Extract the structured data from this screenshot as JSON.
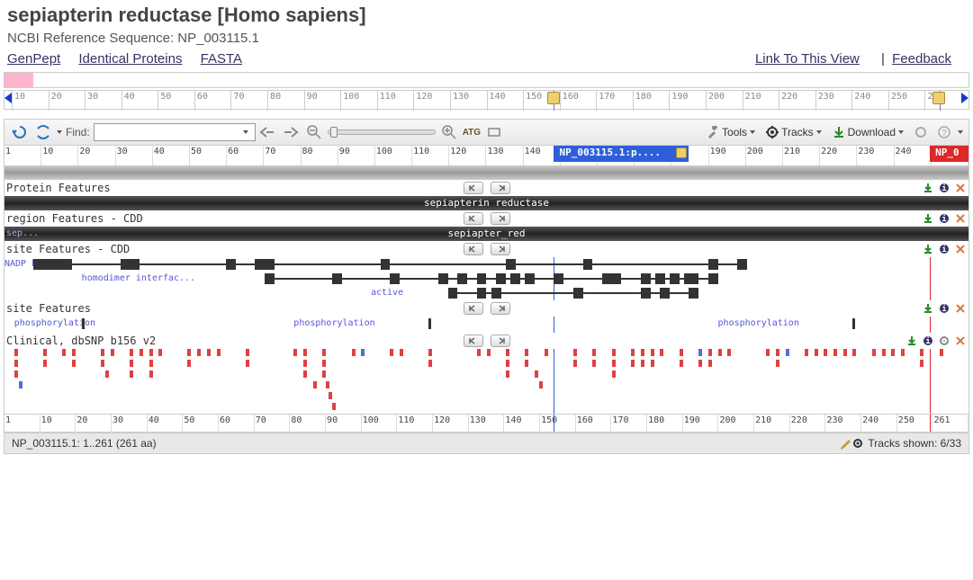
{
  "header": {
    "title": "sepiapterin reductase [Homo sapiens]",
    "subtitle_prefix": "NCBI Reference Sequence:",
    "accession": "NP_003115.1",
    "links": [
      "GenPept",
      "Identical Proteins",
      "FASTA"
    ],
    "right_links": [
      "Link To This View",
      "Feedback"
    ]
  },
  "overview_ruler": {
    "start": 10,
    "end": 260,
    "step": 10,
    "marker_positions_pct": [
      57,
      97
    ],
    "lock_positions_pct": [
      56.3,
      96.3
    ]
  },
  "toolbar": {
    "find_label": "Find:",
    "buttons_right": [
      "Tools",
      "Tracks",
      "Download"
    ]
  },
  "main_ruler": {
    "ticks": [
      1,
      10,
      20,
      30,
      40,
      50,
      60,
      70,
      80,
      90,
      100,
      110,
      120,
      130,
      140,
      150,
      160,
      170,
      180,
      190,
      200,
      210,
      220,
      230,
      240,
      250
    ],
    "blue_label": "NP_003115.1:p....",
    "blue_pos_pct": 57,
    "blue_width_pct": 14,
    "red_label": "NP_0",
    "red_pos_pct": 96,
    "red_width_pct": 4
  },
  "tracks": [
    {
      "name": "Protein Features",
      "type": "header_bar",
      "bar_label": "sepiapterin reductase",
      "icons": [
        "download",
        "info",
        "close"
      ],
      "small_label": null
    },
    {
      "name": "region Features - CDD",
      "type": "header_bar",
      "bar_label": "sepiapter_red",
      "icons": [
        "download",
        "info",
        "close"
      ],
      "small_label": "sep..."
    },
    {
      "name": "site Features - CDD",
      "type": "features",
      "icons": [
        "download",
        "info",
        "close"
      ],
      "rows": [
        {
          "label": "NADP b...",
          "label_pos_pct": 0,
          "line": [
            3,
            77
          ],
          "blocks": [
            [
              3,
              7
            ],
            [
              12,
              14
            ],
            [
              23,
              24
            ],
            [
              26,
              28
            ],
            [
              39,
              40
            ],
            [
              52,
              53
            ],
            [
              60,
              61
            ],
            [
              73,
              74
            ],
            [
              76,
              77
            ]
          ]
        },
        {
          "label": "homodimer interfac...",
          "label_pos_pct": 8,
          "line": [
            27,
            74
          ],
          "blocks": [
            [
              27,
              28
            ],
            [
              34,
              35
            ],
            [
              40,
              41
            ],
            [
              45,
              46
            ],
            [
              47,
              48
            ],
            [
              49,
              50
            ],
            [
              51,
              52
            ],
            [
              52.5,
              53.5
            ],
            [
              54,
              55
            ],
            [
              57,
              58
            ],
            [
              62,
              64
            ],
            [
              66,
              67
            ],
            [
              67.5,
              68.5
            ],
            [
              69,
              70
            ],
            [
              70.5,
              72
            ],
            [
              73,
              74
            ]
          ]
        },
        {
          "label": "active",
          "label_pos_pct": 38,
          "line": [
            46,
            72
          ],
          "blocks": [
            [
              46,
              47
            ],
            [
              49,
              50
            ],
            [
              50.5,
              51.5
            ],
            [
              59,
              60
            ],
            [
              66,
              67
            ],
            [
              68,
              69
            ],
            [
              71,
              72
            ]
          ]
        }
      ]
    },
    {
      "name": "site Features",
      "type": "sites",
      "icons": [
        "download",
        "info",
        "close"
      ],
      "sites": [
        {
          "label": "phosphorylation",
          "pos_pct": 1,
          "tick_pct": 8
        },
        {
          "label": "phosphorylation",
          "pos_pct": 30,
          "tick_pct": 44
        },
        {
          "label": "phosphorylation",
          "pos_pct": 74,
          "tick_pct": 88
        }
      ]
    },
    {
      "name": "Clinical, dbSNP b156 v2",
      "type": "snp",
      "icons": [
        "download",
        "info",
        "gear",
        "close"
      ],
      "snps": {
        "red": [
          [
            1,
            0
          ],
          [
            1,
            1
          ],
          [
            1,
            2
          ],
          [
            4,
            0
          ],
          [
            4,
            1
          ],
          [
            6,
            0
          ],
          [
            7,
            0
          ],
          [
            7,
            1
          ],
          [
            10,
            0
          ],
          [
            10,
            1
          ],
          [
            10.5,
            2
          ],
          [
            11,
            0
          ],
          [
            13,
            0
          ],
          [
            13,
            1
          ],
          [
            13,
            2
          ],
          [
            14,
            0
          ],
          [
            15,
            0
          ],
          [
            15,
            1
          ],
          [
            15,
            2
          ],
          [
            16,
            0
          ],
          [
            19,
            0
          ],
          [
            19,
            1
          ],
          [
            20,
            0
          ],
          [
            21,
            0
          ],
          [
            22,
            0
          ],
          [
            25,
            0
          ],
          [
            25,
            1
          ],
          [
            30,
            0
          ],
          [
            31,
            0
          ],
          [
            31,
            1
          ],
          [
            31,
            2
          ],
          [
            32,
            3
          ],
          [
            33,
            0
          ],
          [
            33,
            1
          ],
          [
            33,
            2
          ],
          [
            33.3,
            3
          ],
          [
            33.6,
            4
          ],
          [
            34,
            5
          ],
          [
            36,
            0
          ],
          [
            40,
            0
          ],
          [
            41,
            0
          ],
          [
            44,
            0
          ],
          [
            44,
            1
          ],
          [
            49,
            0
          ],
          [
            50,
            0
          ],
          [
            52,
            0
          ],
          [
            52,
            1
          ],
          [
            52,
            2
          ],
          [
            54,
            0
          ],
          [
            54,
            1
          ],
          [
            55,
            2
          ],
          [
            55.5,
            3
          ],
          [
            56,
            0
          ],
          [
            59,
            0
          ],
          [
            59,
            1
          ],
          [
            61,
            0
          ],
          [
            61,
            1
          ],
          [
            63,
            0
          ],
          [
            63,
            1
          ],
          [
            63,
            2
          ],
          [
            65,
            0
          ],
          [
            65,
            1
          ],
          [
            66,
            0
          ],
          [
            66,
            1
          ],
          [
            67,
            0
          ],
          [
            67,
            1
          ],
          [
            68,
            0
          ],
          [
            70,
            0
          ],
          [
            70,
            1
          ],
          [
            72,
            1
          ],
          [
            73,
            0
          ],
          [
            73,
            1
          ],
          [
            74,
            0
          ],
          [
            75,
            0
          ],
          [
            79,
            0
          ],
          [
            80,
            0
          ],
          [
            80,
            1
          ],
          [
            83,
            0
          ],
          [
            84,
            0
          ],
          [
            85,
            0
          ],
          [
            86,
            0
          ],
          [
            87,
            0
          ],
          [
            88,
            0
          ],
          [
            90,
            0
          ],
          [
            91,
            0
          ],
          [
            92,
            0
          ],
          [
            93,
            0
          ],
          [
            95,
            0
          ],
          [
            95,
            1
          ],
          [
            97,
            0
          ]
        ],
        "blue": [
          [
            1.5,
            3
          ],
          [
            37,
            0
          ],
          [
            72,
            0
          ],
          [
            81,
            0
          ]
        ]
      }
    }
  ],
  "status": {
    "left": "NP_003115.1: 1..261 (261 aa)",
    "right": "Tracks shown: 6/33"
  },
  "colors": {
    "blue": "#2e5fd9",
    "red": "#dd2828",
    "dark": "#333333",
    "snp_red": "#e04040",
    "snp_blue": "#5070d0"
  }
}
